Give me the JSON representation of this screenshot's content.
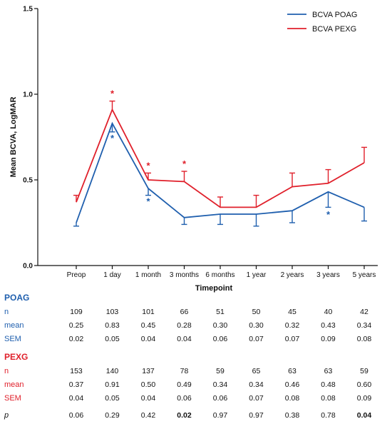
{
  "chart_data": {
    "type": "line",
    "categories": [
      "Preop",
      "1 day",
      "1 month",
      "3 months",
      "6 months",
      "1 year",
      "2 years",
      "3 years",
      "5 years"
    ],
    "xlabel": "Timepoint",
    "ylabel": "Mean BCVA, LogMAR",
    "ylim": [
      0.0,
      1.5
    ],
    "yticks": [
      "0.0",
      "0.5",
      "1.0",
      "1.5"
    ],
    "legend_position": "top-right",
    "error_bars": "SEM",
    "series": [
      {
        "name": "BCVA POAG",
        "color": "#1f5fae",
        "values": [
          0.25,
          0.83,
          0.45,
          0.28,
          0.3,
          0.3,
          0.32,
          0.43,
          0.34
        ],
        "sem": [
          0.02,
          0.05,
          0.04,
          0.04,
          0.06,
          0.07,
          0.07,
          0.09,
          0.08
        ],
        "significant": [
          false,
          true,
          true,
          false,
          false,
          false,
          false,
          true,
          false
        ]
      },
      {
        "name": "BCVA PEXG",
        "color": "#e0202b",
        "values": [
          0.37,
          0.91,
          0.5,
          0.49,
          0.34,
          0.34,
          0.46,
          0.48,
          0.6
        ],
        "sem": [
          0.04,
          0.05,
          0.04,
          0.06,
          0.06,
          0.07,
          0.08,
          0.08,
          0.09
        ],
        "significant": [
          false,
          true,
          true,
          true,
          false,
          false,
          false,
          false,
          false
        ]
      }
    ],
    "significance_marker": "*"
  },
  "table": {
    "groups": [
      {
        "title": "POAG",
        "color": "#1f5fae",
        "rows": [
          {
            "label": "n",
            "values": [
              "109",
              "103",
              "101",
              "66",
              "51",
              "50",
              "45",
              "40",
              "42"
            ]
          },
          {
            "label": "mean",
            "values": [
              "0.25",
              "0.83",
              "0.45",
              "0.28",
              "0.30",
              "0.30",
              "0.32",
              "0.43",
              "0.34"
            ]
          },
          {
            "label": "SEM",
            "values": [
              "0.02",
              "0.05",
              "0.04",
              "0.04",
              "0.06",
              "0.07",
              "0.07",
              "0.09",
              "0.08"
            ]
          }
        ]
      },
      {
        "title": "PEXG",
        "color": "#e0202b",
        "rows": [
          {
            "label": "n",
            "values": [
              "153",
              "140",
              "137",
              "78",
              "59",
              "65",
              "63",
              "63",
              "59"
            ]
          },
          {
            "label": "mean",
            "values": [
              "0.37",
              "0.91",
              "0.50",
              "0.49",
              "0.34",
              "0.34",
              "0.46",
              "0.48",
              "0.60"
            ]
          },
          {
            "label": "SEM",
            "values": [
              "0.04",
              "0.05",
              "0.04",
              "0.06",
              "0.06",
              "0.07",
              "0.08",
              "0.08",
              "0.09"
            ]
          }
        ]
      }
    ],
    "p_row": {
      "label": "p",
      "values": [
        "0.06",
        "0.29",
        "0.42",
        "0.02",
        "0.97",
        "0.97",
        "0.38",
        "0.78",
        "0.04"
      ],
      "bold": [
        false,
        false,
        false,
        true,
        false,
        false,
        false,
        false,
        true
      ]
    }
  }
}
